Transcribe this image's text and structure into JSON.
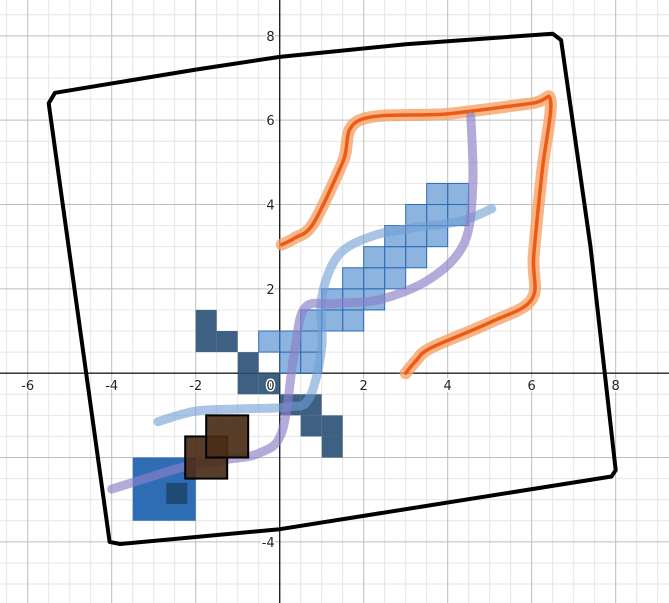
{
  "chart_data": {
    "type": "scatter",
    "grid": true,
    "xlim": [
      -6.66,
      9.27
    ],
    "ylim": [
      -5.45,
      8.85
    ],
    "x_ticks": [
      -6,
      -4,
      -2,
      0,
      2,
      4,
      6,
      8
    ],
    "y_ticks": [
      -4,
      2,
      4,
      6,
      8
    ],
    "x_tick_labels": [
      "-6",
      "-4",
      "-2",
      "0",
      "2",
      "4",
      "6",
      "8"
    ],
    "y_tick_labels": [
      "-4",
      "2",
      "4",
      "6",
      "8"
    ],
    "colors": {
      "outline": "#000000",
      "orange": "#ee5a14",
      "orange_glow": "#f6a46a",
      "light_blue": "#6f9ed6",
      "purple": "#8b7fc8",
      "blade_fill": "#4f8ccc",
      "blade_edge": "#2f6db5",
      "guard": "#2e5478",
      "pommel": "#2e6db4",
      "pommel_inner": "#1f4a75",
      "brown": "#4a2d17"
    },
    "outline": [
      [
        -5.5,
        6.4
      ],
      [
        -5.35,
        6.65
      ],
      [
        -2,
        7.2
      ],
      [
        0,
        7.5
      ],
      [
        3,
        7.8
      ],
      [
        6.5,
        8.05
      ],
      [
        6.7,
        7.9
      ],
      [
        7.4,
        3
      ],
      [
        8.0,
        -2.3
      ],
      [
        7.9,
        -2.45
      ],
      [
        0,
        -3.7
      ],
      [
        -3.8,
        -4.05
      ],
      [
        -4.05,
        -4.0
      ]
    ],
    "orange_path": [
      [
        0.05,
        3.05
      ],
      [
        0.35,
        3.2
      ],
      [
        0.8,
        3.55
      ],
      [
        1.5,
        5.0
      ],
      [
        1.9,
        6.0
      ],
      [
        4.0,
        6.15
      ],
      [
        6.0,
        6.4
      ],
      [
        6.45,
        6.45
      ],
      [
        6.25,
        4.8
      ],
      [
        6.05,
        2.8
      ],
      [
        6.0,
        1.75
      ],
      [
        5.0,
        1.2
      ],
      [
        3.6,
        0.6
      ],
      [
        3.25,
        0.3
      ],
      [
        3.0,
        0.0
      ]
    ],
    "light_blue_path": [
      [
        -2.9,
        -1.15
      ],
      [
        -2.0,
        -0.9
      ],
      [
        -1.0,
        -0.85
      ],
      [
        0.2,
        -0.8
      ],
      [
        0.7,
        -0.6
      ],
      [
        1.0,
        0.6
      ],
      [
        1.0,
        1.8
      ],
      [
        1.4,
        2.8
      ],
      [
        2.2,
        3.25
      ],
      [
        3.2,
        3.45
      ],
      [
        4.3,
        3.6
      ],
      [
        5.05,
        3.9
      ]
    ],
    "purple_path": [
      [
        -4.0,
        -2.75
      ],
      [
        -3.2,
        -2.5
      ],
      [
        -2.2,
        -2.2
      ],
      [
        -1.3,
        -2.05
      ],
      [
        -0.5,
        -1.9
      ],
      [
        0.05,
        -1.4
      ],
      [
        0.35,
        0.5
      ],
      [
        0.6,
        1.55
      ],
      [
        1.3,
        1.65
      ],
      [
        2.4,
        1.75
      ],
      [
        3.6,
        2.25
      ],
      [
        4.4,
        3.1
      ],
      [
        4.6,
        4.5
      ],
      [
        4.55,
        6.1
      ]
    ],
    "blade_squares": [
      [
        -0.5,
        0.5
      ],
      [
        0.0,
        0.0
      ],
      [
        0.5,
        0.5
      ],
      [
        0.5,
        1.0
      ],
      [
        1.0,
        1.0
      ],
      [
        1.5,
        1.5
      ],
      [
        2.0,
        2.0
      ],
      [
        2.5,
        2.5
      ],
      [
        3.0,
        3.0
      ],
      [
        3.5,
        3.5
      ],
      [
        4.0,
        4.0
      ],
      [
        1.0,
        1.5
      ],
      [
        1.5,
        2.0
      ],
      [
        2.0,
        2.5
      ],
      [
        2.5,
        3.0
      ],
      [
        3.0,
        3.5
      ],
      [
        3.5,
        4.0
      ],
      [
        0.0,
        0.5
      ],
      [
        0.5,
        0.0
      ],
      [
        1.5,
        1.0
      ],
      [
        2.0,
        1.5
      ],
      [
        2.5,
        2.0
      ],
      [
        3.0,
        2.5
      ],
      [
        3.5,
        3.0
      ],
      [
        4.0,
        3.5
      ]
    ],
    "guard_squares": [
      [
        -2.0,
        1.0
      ],
      [
        -1.5,
        0.5
      ],
      [
        -1.0,
        0.0
      ],
      [
        -0.5,
        -0.5
      ],
      [
        0.0,
        -1.0
      ],
      [
        0.5,
        -1.5
      ],
      [
        1.0,
        -2.0
      ],
      [
        -2.0,
        0.5
      ],
      [
        -1.0,
        -0.5
      ],
      [
        0.5,
        -1.0
      ],
      [
        1.0,
        -1.5
      ]
    ],
    "pommel_square": [
      -3.5,
      -2.0,
      1.5
    ],
    "pommel_inner": [
      -2.7,
      -2.6,
      0.5
    ],
    "brown_squares": [
      [
        -2.25,
        -1.5,
        1.0
      ],
      [
        -1.75,
        -1.0,
        1.0
      ]
    ]
  }
}
